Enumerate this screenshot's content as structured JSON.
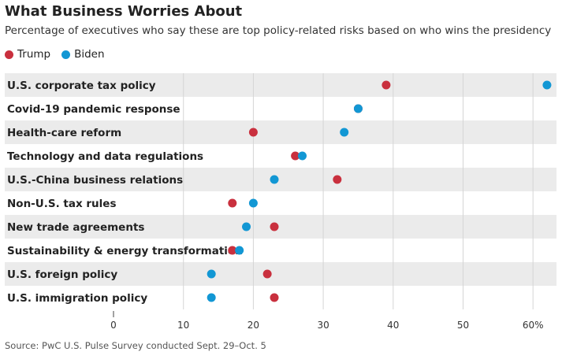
{
  "title": "What Business Worries About",
  "subtitle": "Percentage of executives who say these are top policy-related risks based on who wins the presidency",
  "source": "Source: PwC U.S. Pulse Survey conducted Sept. 29–Oct. 5",
  "colors": {
    "trump": "#c9303e",
    "biden": "#1297d4",
    "band": "#ebebeb",
    "grid": "#d5d5d5"
  },
  "chart_data": {
    "type": "scatter",
    "orientation": "horizontal-dot-plot",
    "categories": [
      "U.S. corporate tax policy",
      "Covid-19 pandemic response",
      "Health-care reform",
      "Technology and data regulations",
      "U.S.-China business relations",
      "Non-U.S. tax rules",
      "New trade agreements",
      "Sustainability & energy transformation",
      "U.S. foreign policy",
      "U.S. immigration policy"
    ],
    "series": [
      {
        "name": "Trump",
        "values": [
          39,
          35,
          20,
          26,
          32,
          17,
          23,
          17,
          22,
          23
        ]
      },
      {
        "name": "Biden",
        "values": [
          62,
          35,
          33,
          27,
          23,
          20,
          19,
          18,
          14,
          14
        ]
      }
    ],
    "xlim": [
      0,
      63
    ],
    "xticks": [
      0,
      10,
      20,
      30,
      40,
      50,
      60
    ],
    "xtick_labels": [
      "0",
      "10",
      "20",
      "30",
      "40",
      "50",
      "60%"
    ],
    "legend_position": "top-left",
    "grid": true
  }
}
